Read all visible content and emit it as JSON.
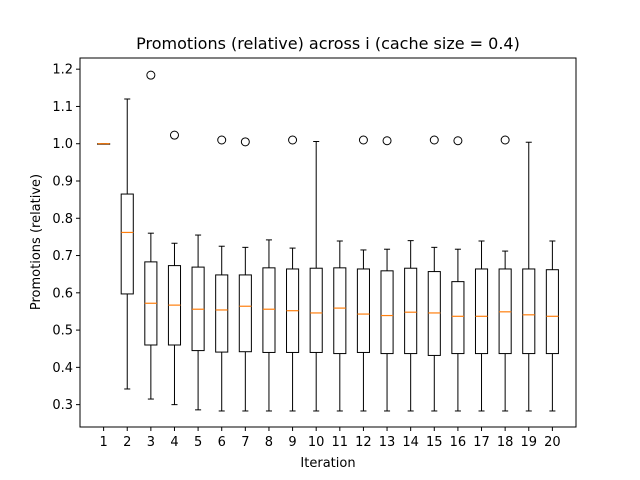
{
  "chart_data": {
    "type": "box",
    "title": "Promotions (relative) across i (cache size = 0.4)",
    "xlabel": "Iteration",
    "ylabel": "Promotions (relative)",
    "ylim": [
      0.24,
      1.23
    ],
    "yticks": [
      0.3,
      0.4,
      0.5,
      0.6,
      0.7,
      0.8,
      0.9,
      1.0,
      1.1,
      1.2
    ],
    "ytick_labels": [
      "0.3",
      "0.4",
      "0.5",
      "0.6",
      "0.7",
      "0.8",
      "0.9",
      "1.0",
      "1.1",
      "1.2"
    ],
    "categories": [
      "1",
      "2",
      "3",
      "4",
      "5",
      "6",
      "7",
      "8",
      "9",
      "10",
      "11",
      "12",
      "13",
      "14",
      "15",
      "16",
      "17",
      "18",
      "19",
      "20"
    ],
    "boxes": [
      {
        "whislo": 1.0,
        "q1": 1.0,
        "med": 1.0,
        "q3": 1.0,
        "whishi": 1.0,
        "fliers": []
      },
      {
        "whislo": 0.342,
        "q1": 0.597,
        "med": 0.762,
        "q3": 0.865,
        "whishi": 1.12,
        "fliers": []
      },
      {
        "whislo": 0.315,
        "q1": 0.46,
        "med": 0.572,
        "q3": 0.683,
        "whishi": 0.76,
        "fliers": [
          1.184
        ]
      },
      {
        "whislo": 0.3,
        "q1": 0.46,
        "med": 0.567,
        "q3": 0.673,
        "whishi": 0.733,
        "fliers": [
          1.023
        ]
      },
      {
        "whislo": 0.286,
        "q1": 0.445,
        "med": 0.556,
        "q3": 0.669,
        "whishi": 0.755,
        "fliers": []
      },
      {
        "whislo": 0.283,
        "q1": 0.441,
        "med": 0.554,
        "q3": 0.648,
        "whishi": 0.725,
        "fliers": [
          1.01
        ]
      },
      {
        "whislo": 0.283,
        "q1": 0.442,
        "med": 0.564,
        "q3": 0.648,
        "whishi": 0.722,
        "fliers": [
          1.005
        ]
      },
      {
        "whislo": 0.283,
        "q1": 0.44,
        "med": 0.556,
        "q3": 0.667,
        "whishi": 0.742,
        "fliers": []
      },
      {
        "whislo": 0.283,
        "q1": 0.44,
        "med": 0.552,
        "q3": 0.664,
        "whishi": 0.72,
        "fliers": [
          1.01
        ]
      },
      {
        "whislo": 0.283,
        "q1": 0.44,
        "med": 0.546,
        "q3": 0.666,
        "whishi": 1.006,
        "fliers": []
      },
      {
        "whislo": 0.283,
        "q1": 0.437,
        "med": 0.559,
        "q3": 0.667,
        "whishi": 0.739,
        "fliers": []
      },
      {
        "whislo": 0.283,
        "q1": 0.44,
        "med": 0.543,
        "q3": 0.664,
        "whishi": 0.715,
        "fliers": [
          1.01
        ]
      },
      {
        "whislo": 0.283,
        "q1": 0.437,
        "med": 0.539,
        "q3": 0.659,
        "whishi": 0.717,
        "fliers": [
          1.008
        ]
      },
      {
        "whislo": 0.283,
        "q1": 0.437,
        "med": 0.548,
        "q3": 0.666,
        "whishi": 0.74,
        "fliers": []
      },
      {
        "whislo": 0.283,
        "q1": 0.432,
        "med": 0.546,
        "q3": 0.657,
        "whishi": 0.722,
        "fliers": [
          1.01
        ]
      },
      {
        "whislo": 0.283,
        "q1": 0.437,
        "med": 0.537,
        "q3": 0.63,
        "whishi": 0.717,
        "fliers": [
          1.008
        ]
      },
      {
        "whislo": 0.283,
        "q1": 0.437,
        "med": 0.537,
        "q3": 0.664,
        "whishi": 0.739,
        "fliers": []
      },
      {
        "whislo": 0.283,
        "q1": 0.437,
        "med": 0.549,
        "q3": 0.664,
        "whishi": 0.712,
        "fliers": [
          1.01
        ]
      },
      {
        "whislo": 0.283,
        "q1": 0.437,
        "med": 0.541,
        "q3": 0.664,
        "whishi": 1.004,
        "fliers": []
      },
      {
        "whislo": 0.283,
        "q1": 0.437,
        "med": 0.537,
        "q3": 0.662,
        "whishi": 0.739,
        "fliers": []
      }
    ],
    "colors": {
      "box": "#000000",
      "median": "#ff7f0e",
      "flier": "#000000"
    },
    "grid": false,
    "legend": "none"
  }
}
